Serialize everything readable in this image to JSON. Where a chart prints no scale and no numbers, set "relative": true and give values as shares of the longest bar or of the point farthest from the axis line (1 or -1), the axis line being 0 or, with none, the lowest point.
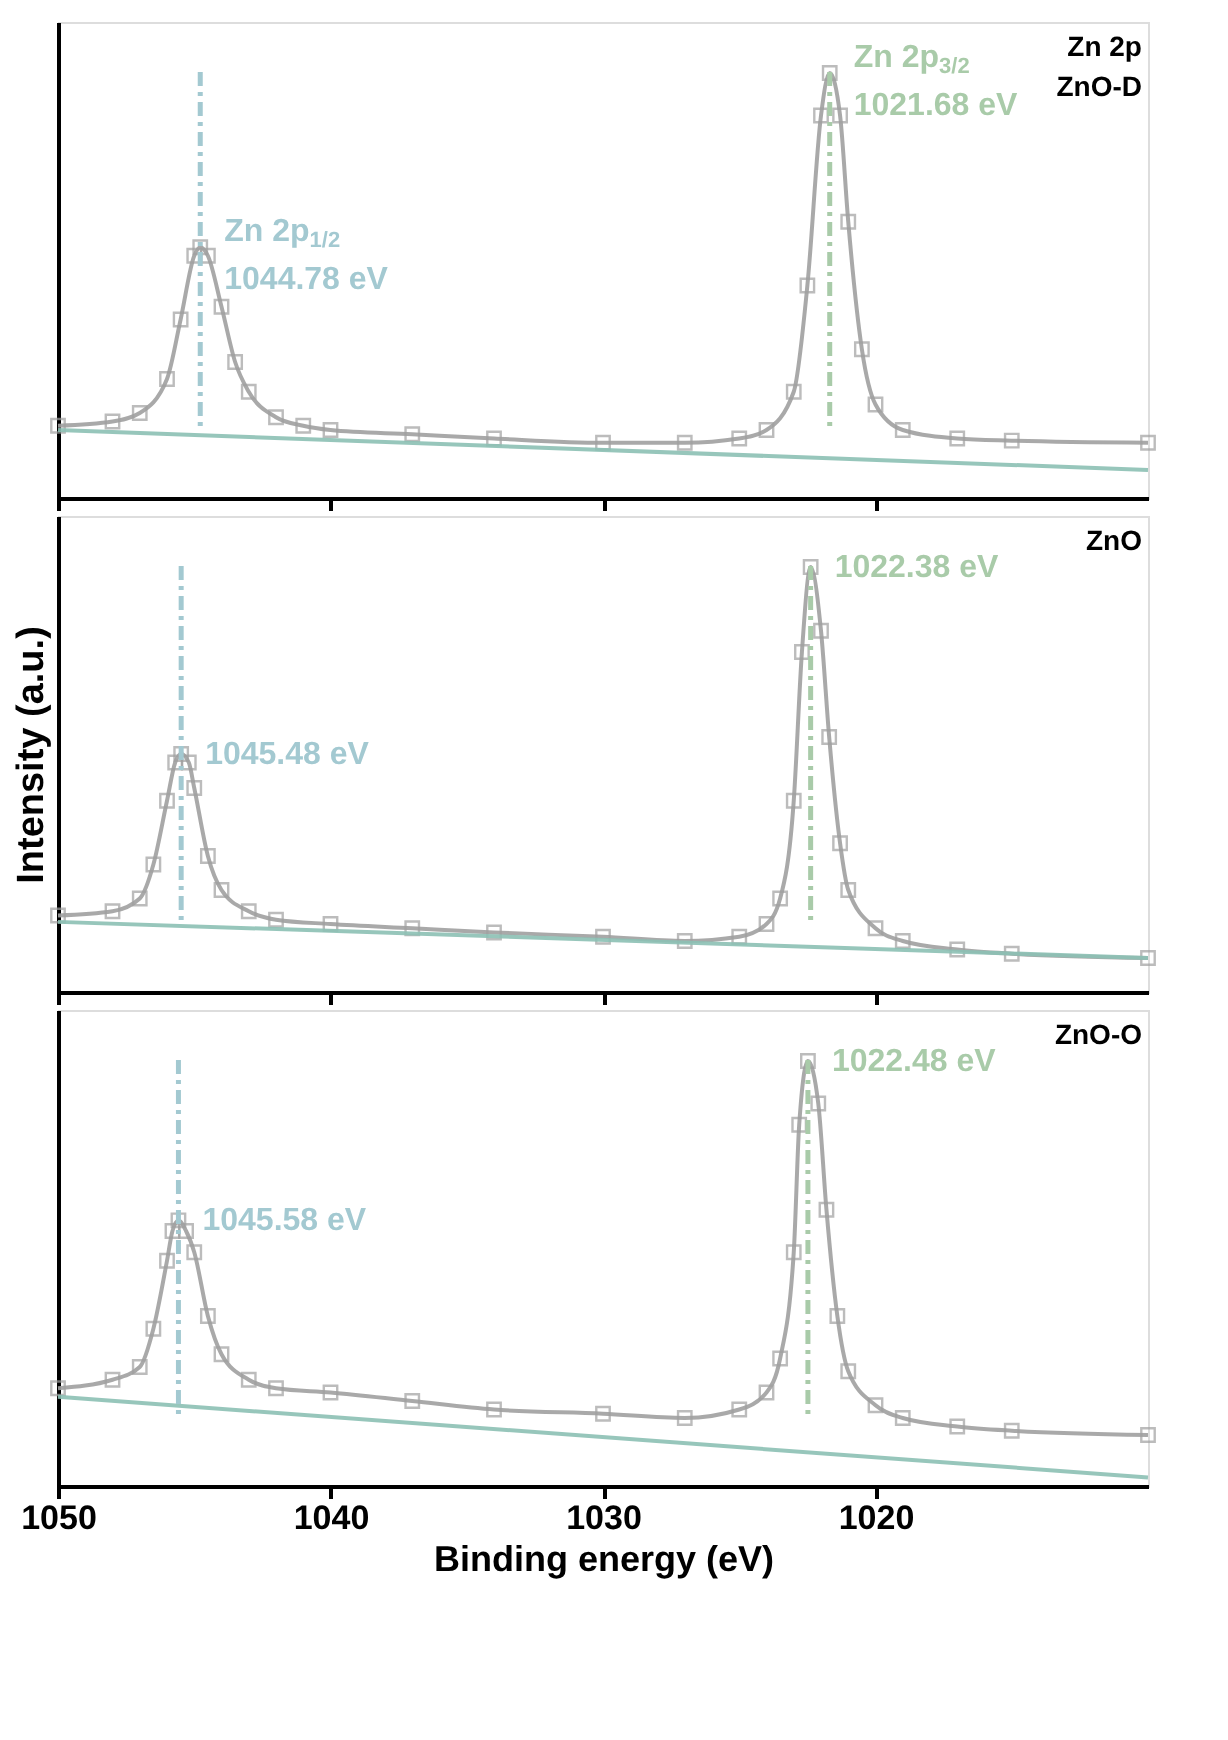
{
  "chart_data": [
    {
      "type": "line",
      "relative": true,
      "xlim": [
        1050,
        1010
      ],
      "xticks": [
        1050,
        1040,
        1030,
        1020
      ],
      "tick_labels": false,
      "grid": false,
      "series": [
        {
          "type": "line",
          "color": "#a0a0a0",
          "marker": "square",
          "x": [
            1050,
            1048,
            1047,
            1046,
            1045.5,
            1045,
            1044.78,
            1044.5,
            1044,
            1043.5,
            1043,
            1042,
            1041,
            1040,
            1037,
            1034,
            1030,
            1027,
            1025,
            1024,
            1023,
            1022.5,
            1022,
            1021.68,
            1021.3,
            1021,
            1020.5,
            1020,
            1019,
            1017,
            1015,
            1010
          ],
          "values": [
            0.17,
            0.18,
            0.2,
            0.28,
            0.42,
            0.57,
            0.59,
            0.57,
            0.45,
            0.32,
            0.25,
            0.19,
            0.17,
            0.16,
            0.15,
            0.14,
            0.13,
            0.13,
            0.14,
            0.16,
            0.25,
            0.5,
            0.9,
            1.0,
            0.9,
            0.65,
            0.35,
            0.22,
            0.16,
            0.14,
            0.135,
            0.13
          ]
        },
        {
          "type": "line",
          "color": "#8cc0b4",
          "marker": "none",
          "x": [
            1050,
            1010
          ],
          "values": [
            0.16,
            0.066
          ]
        }
      ],
      "ref_lines": [
        {
          "axis": "x",
          "value": 1044.78,
          "label": "Zn 2p$_{1/2}$\n1044.78 eV",
          "color": "#a3c9d1",
          "line_style": "dashed"
        },
        {
          "axis": "x",
          "value": 1021.68,
          "label": "Zn 2p$_{3/2}$\n1021.68 eV",
          "color": "#a9cba9",
          "line_style": "dashed"
        }
      ],
      "annotations": [
        "Zn 2p",
        "ZnO-D"
      ]
    },
    {
      "type": "line",
      "relative": true,
      "xlim": [
        1050,
        1010
      ],
      "xticks": [
        1050,
        1040,
        1030,
        1020
      ],
      "tick_labels": false,
      "ylabel": "Intensity (a.u.)",
      "grid": false,
      "series": [
        {
          "type": "line",
          "color": "#a0a0a0",
          "marker": "square",
          "x": [
            1050,
            1048,
            1047,
            1046.5,
            1046,
            1045.7,
            1045.48,
            1045.2,
            1045,
            1044.5,
            1044,
            1043,
            1042,
            1040,
            1037,
            1034,
            1030,
            1027,
            1025,
            1024,
            1023.5,
            1023,
            1022.7,
            1022.38,
            1022,
            1021.7,
            1021.3,
            1021,
            1020,
            1019,
            1017,
            1015,
            1010
          ],
          "values": [
            0.18,
            0.19,
            0.22,
            0.3,
            0.45,
            0.54,
            0.56,
            0.54,
            0.48,
            0.32,
            0.24,
            0.19,
            0.17,
            0.16,
            0.15,
            0.14,
            0.13,
            0.12,
            0.13,
            0.16,
            0.22,
            0.45,
            0.8,
            1.0,
            0.85,
            0.6,
            0.35,
            0.24,
            0.15,
            0.12,
            0.1,
            0.09,
            0.08
          ]
        },
        {
          "type": "line",
          "color": "#8cc0b4",
          "marker": "none",
          "x": [
            1050,
            1010
          ],
          "values": [
            0.165,
            0.08
          ]
        }
      ],
      "ref_lines": [
        {
          "axis": "x",
          "value": 1045.48,
          "label": "1045.48 eV",
          "color": "#a3c9d1",
          "line_style": "dashed"
        },
        {
          "axis": "x",
          "value": 1022.38,
          "label": "1022.38 eV",
          "color": "#a9cba9",
          "line_style": "dashed"
        }
      ],
      "annotations": [
        "ZnO"
      ]
    },
    {
      "type": "line",
      "relative": true,
      "xlim": [
        1050,
        1010
      ],
      "xticks": [
        {
          "value": 1050,
          "label": "1050"
        },
        {
          "value": 1040,
          "label": "1040"
        },
        {
          "value": 1030,
          "label": "1030"
        },
        {
          "value": 1020,
          "label": "1020"
        }
      ],
      "tick_labels": "x",
      "xlabel": "Binding energy (eV)",
      "grid": false,
      "series": [
        {
          "type": "line",
          "color": "#a0a0a0",
          "marker": "square",
          "x": [
            1050,
            1048,
            1047,
            1046.5,
            1046,
            1045.8,
            1045.58,
            1045.3,
            1045,
            1044.5,
            1044,
            1043,
            1042,
            1040,
            1037,
            1034,
            1030,
            1027,
            1025,
            1024,
            1023.5,
            1023,
            1022.8,
            1022.48,
            1022.1,
            1021.8,
            1021.4,
            1021,
            1020,
            1019,
            1017,
            1015,
            1010
          ],
          "values": [
            0.23,
            0.25,
            0.28,
            0.37,
            0.53,
            0.6,
            0.625,
            0.6,
            0.55,
            0.4,
            0.31,
            0.25,
            0.23,
            0.22,
            0.2,
            0.18,
            0.17,
            0.16,
            0.18,
            0.22,
            0.3,
            0.55,
            0.85,
            1.0,
            0.9,
            0.65,
            0.4,
            0.27,
            0.19,
            0.16,
            0.14,
            0.13,
            0.12
          ]
        },
        {
          "type": "line",
          "color": "#8cc0b4",
          "marker": "none",
          "x": [
            1050,
            1010
          ],
          "values": [
            0.21,
            0.02
          ]
        }
      ],
      "ref_lines": [
        {
          "axis": "x",
          "value": 1045.58,
          "label": "1045.58 eV",
          "color": "#a3c9d1",
          "line_style": "dashed"
        },
        {
          "axis": "x",
          "value": 1022.48,
          "label": "1022.48 eV",
          "color": "#a9cba9",
          "line_style": "dashed"
        }
      ],
      "annotations": [
        "ZnO-O"
      ]
    }
  ]
}
